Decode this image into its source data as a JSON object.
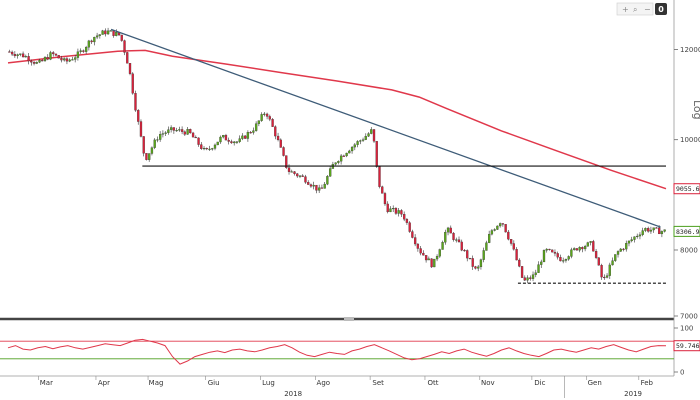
{
  "toolbar": {
    "icons": [
      "add-icon",
      "zoom-icon",
      "zoom-out-icon"
    ],
    "badge": "0"
  },
  "chart_data": [
    {
      "type": "candlestick",
      "scale": "log",
      "ylim": [
        7000,
        13000
      ],
      "y_ticks": [
        {
          "value": 12000,
          "label": "12000"
        },
        {
          "value": 10000,
          "label": "10000"
        },
        {
          "value": 8000,
          "label": "8000"
        },
        {
          "value": 7000,
          "label": "7000"
        }
      ],
      "y_axis_note": "Log",
      "x_months": [
        "Mar",
        "Apr",
        "Mag",
        "Giu",
        "Lug",
        "Ago",
        "Set",
        "Ott",
        "Nov",
        "Dic",
        "Gen",
        "Feb"
      ],
      "x_years": [
        "2018",
        "2019"
      ],
      "price_tags": [
        {
          "label": "9055.6836",
          "value": 9055.6836,
          "color": "#d9213b"
        },
        {
          "label": "8306.9402",
          "value": 8306.9402,
          "color": "#4a9e1c"
        }
      ],
      "reference_lines": [
        {
          "kind": "trendline",
          "from": {
            "month": 1.88,
            "value": 12500
          },
          "to": {
            "month": 11.9,
            "value": 8380
          },
          "color": "#3e5c78"
        },
        {
          "kind": "horizontal",
          "value": 9480,
          "from_month": 2.45,
          "to_month": 12.0,
          "color": "#111111",
          "style": "solid"
        },
        {
          "kind": "horizontal",
          "value": 7480,
          "from_month": 9.3,
          "to_month": 12.0,
          "color": "#111111",
          "style": "dashed"
        }
      ],
      "moving_average": {
        "color": "#e0384b",
        "points": [
          {
            "m": 0.0,
            "v": 11680
          },
          {
            "m": 1.0,
            "v": 11830
          },
          {
            "m": 2.0,
            "v": 11960
          },
          {
            "m": 2.5,
            "v": 11980
          },
          {
            "m": 3.0,
            "v": 11840
          },
          {
            "m": 4.0,
            "v": 11650
          },
          {
            "m": 5.0,
            "v": 11450
          },
          {
            "m": 6.0,
            "v": 11260
          },
          {
            "m": 7.0,
            "v": 11060
          },
          {
            "m": 7.5,
            "v": 10900
          },
          {
            "m": 8.0,
            "v": 10650
          },
          {
            "m": 9.0,
            "v": 10180
          },
          {
            "m": 10.0,
            "v": 9780
          },
          {
            "m": 11.0,
            "v": 9400
          },
          {
            "m": 12.0,
            "v": 9056
          }
        ]
      },
      "price_path": [
        {
          "m": 0.0,
          "v": 11950
        },
        {
          "m": 0.3,
          "v": 11850
        },
        {
          "m": 0.55,
          "v": 11650
        },
        {
          "m": 0.8,
          "v": 11900
        },
        {
          "m": 1.05,
          "v": 11700
        },
        {
          "m": 1.3,
          "v": 11900
        },
        {
          "m": 1.55,
          "v": 12300
        },
        {
          "m": 1.8,
          "v": 12450
        },
        {
          "m": 2.05,
          "v": 12350
        },
        {
          "m": 2.2,
          "v": 11600
        },
        {
          "m": 2.35,
          "v": 10500
        },
        {
          "m": 2.5,
          "v": 9600
        },
        {
          "m": 2.75,
          "v": 10100
        },
        {
          "m": 3.0,
          "v": 10200
        },
        {
          "m": 3.3,
          "v": 10150
        },
        {
          "m": 3.6,
          "v": 9750
        },
        {
          "m": 3.9,
          "v": 10050
        },
        {
          "m": 4.2,
          "v": 9950
        },
        {
          "m": 4.5,
          "v": 10250
        },
        {
          "m": 4.7,
          "v": 10600
        },
        {
          "m": 4.9,
          "v": 10050
        },
        {
          "m": 5.1,
          "v": 9400
        },
        {
          "m": 5.4,
          "v": 9250
        },
        {
          "m": 5.7,
          "v": 9000
        },
        {
          "m": 5.95,
          "v": 9550
        },
        {
          "m": 6.2,
          "v": 9800
        },
        {
          "m": 6.5,
          "v": 10050
        },
        {
          "m": 6.65,
          "v": 10200
        },
        {
          "m": 6.75,
          "v": 9200
        },
        {
          "m": 6.9,
          "v": 8700
        },
        {
          "m": 7.2,
          "v": 8600
        },
        {
          "m": 7.5,
          "v": 8000
        },
        {
          "m": 7.75,
          "v": 7750
        },
        {
          "m": 8.0,
          "v": 8350
        },
        {
          "m": 8.3,
          "v": 8000
        },
        {
          "m": 8.55,
          "v": 7650
        },
        {
          "m": 8.8,
          "v": 8300
        },
        {
          "m": 9.0,
          "v": 8500
        },
        {
          "m": 9.2,
          "v": 8050
        },
        {
          "m": 9.4,
          "v": 7500
        },
        {
          "m": 9.6,
          "v": 7600
        },
        {
          "m": 9.8,
          "v": 8000
        },
        {
          "m": 10.1,
          "v": 7850
        },
        {
          "m": 10.4,
          "v": 8050
        },
        {
          "m": 10.65,
          "v": 8100
        },
        {
          "m": 10.85,
          "v": 7500
        },
        {
          "m": 11.1,
          "v": 7950
        },
        {
          "m": 11.35,
          "v": 8150
        },
        {
          "m": 11.6,
          "v": 8350
        },
        {
          "m": 11.9,
          "v": 8310
        }
      ]
    },
    {
      "type": "line",
      "ylim": [
        0,
        100
      ],
      "y_ticks": [
        {
          "value": 100,
          "label": "100"
        },
        {
          "value": 0,
          "label": "0"
        }
      ],
      "bands": [
        {
          "value": 70,
          "color": "#e0384b"
        },
        {
          "value": 30,
          "color": "#4a9e1c"
        }
      ],
      "price_tags": [
        {
          "label": "59.7469",
          "value": 59.7469,
          "color": "#d9213b"
        }
      ],
      "series": [
        {
          "color": "#e0384b",
          "values": [
            55,
            60,
            52,
            50,
            55,
            58,
            53,
            57,
            60,
            55,
            52,
            56,
            60,
            64,
            62,
            60,
            66,
            72,
            74,
            70,
            66,
            60,
            35,
            18,
            25,
            35,
            40,
            45,
            48,
            44,
            50,
            52,
            48,
            46,
            50,
            55,
            58,
            62,
            55,
            45,
            38,
            35,
            40,
            45,
            42,
            40,
            48,
            52,
            58,
            62,
            55,
            48,
            40,
            32,
            28,
            30,
            35,
            40,
            46,
            42,
            48,
            52,
            45,
            40,
            36,
            42,
            50,
            55,
            48,
            42,
            38,
            35,
            42,
            50,
            52,
            48,
            45,
            50,
            55,
            52,
            58,
            62,
            56,
            50,
            46,
            52,
            58,
            60,
            59.75
          ]
        }
      ]
    }
  ]
}
